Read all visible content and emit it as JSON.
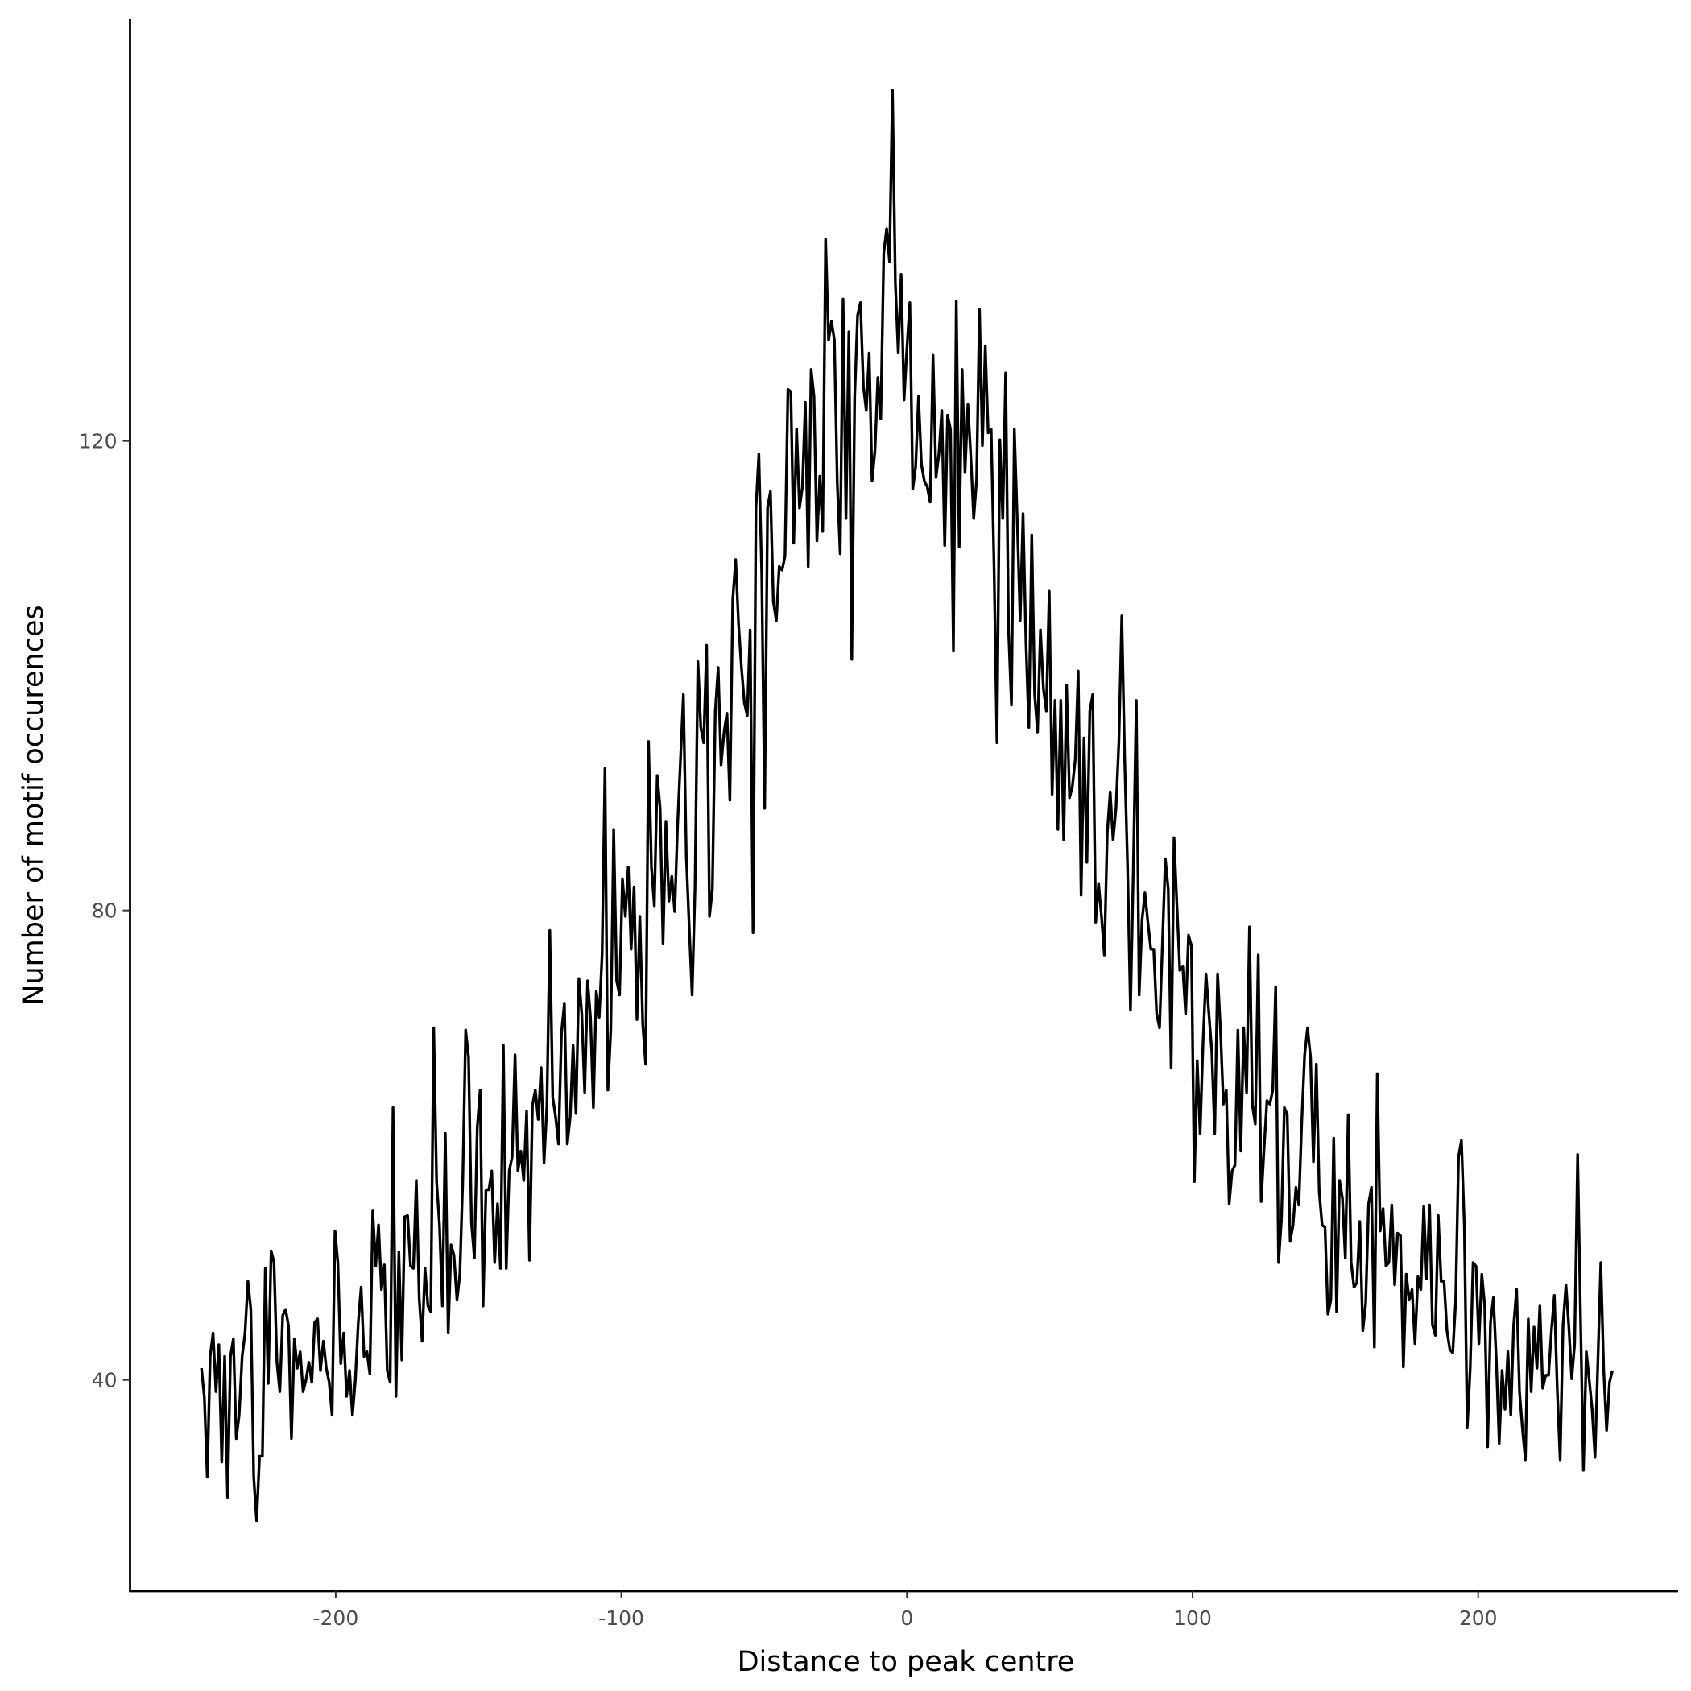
{
  "chart_data": {
    "type": "line",
    "title": "",
    "xlabel": "Distance to peak centre",
    "ylabel": "Number of motif occurences",
    "xlim": [
      -272,
      270
    ],
    "ylim": [
      22,
      156
    ],
    "x_range": [
      -247,
      247
    ],
    "x_ticks": [
      -200,
      -100,
      0,
      100,
      200
    ],
    "x_tick_labels": [
      "-200",
      "-100",
      "0",
      "100",
      "200"
    ],
    "y_ticks": [
      40,
      80,
      120
    ],
    "y_tick_labels": [
      "40",
      "80",
      "120"
    ],
    "grid": false,
    "line_color": "#000000",
    "series": [
      {
        "values": [
          41,
          38.5,
          31.7,
          42,
          44,
          39,
          43,
          33,
          42,
          30,
          42,
          43.5,
          35,
          37,
          42,
          44,
          48.4,
          46,
          31.7,
          28,
          33.5,
          33.5,
          49.5,
          39.7,
          51,
          50,
          41.5,
          39,
          45.5,
          46,
          44.6,
          35,
          43.5,
          41,
          42.4,
          39,
          40,
          41.5,
          39.8,
          44.9,
          45.2,
          40.8,
          43.3,
          41,
          39.8,
          37,
          52.7,
          50,
          41.4,
          44,
          38.6,
          40.8,
          37,
          40,
          44.9,
          47.9,
          42,
          42.4,
          40.5,
          54.4,
          49.7,
          53.2,
          47.7,
          49.8,
          40.8,
          39.8,
          63.2,
          38.6,
          50.9,
          41.7,
          53.9,
          54,
          49.7,
          49.5,
          57,
          46.9,
          43.3,
          49.5,
          46.3,
          45.8,
          70,
          56.9,
          53.2,
          46.3,
          61,
          44,
          51.5,
          50.6,
          46.8,
          49,
          57,
          69.8,
          67.5,
          53.4,
          50.4,
          61.5,
          64.7,
          46.3,
          56.2,
          56.2,
          57.8,
          50,
          55,
          49.5,
          68.5,
          49.5,
          57.8,
          59,
          67.7,
          57.8,
          59.5,
          57,
          62.9,
          50.2,
          63.4,
          64.7,
          62.2,
          66.6,
          58.5,
          63.4,
          78.3,
          64.1,
          62.4,
          60.1,
          69.6,
          72.1,
          60.1,
          62.4,
          68.5,
          62.7,
          74.2,
          71.2,
          64.5,
          74,
          70.9,
          63.2,
          73.1,
          70.9,
          76.2,
          92.1,
          64.7,
          69.8,
          86.9,
          74,
          72.8,
          82.7,
          79.5,
          83.7,
          76.7,
          82,
          70.7,
          79.5,
          70.3,
          66.9,
          94.4,
          83.7,
          80.4,
          91.5,
          88.7,
          77.2,
          87.6,
          80.8,
          82.9,
          79.9,
          87.3,
          92.9,
          98.4,
          84.6,
          78.6,
          72.8,
          81.8,
          101.2,
          95.6,
          94.3,
          102.6,
          79.5,
          81.8,
          97,
          100.7,
          92.4,
          95.2,
          96.8,
          89.4,
          106.5,
          109.9,
          104.4,
          100.7,
          97.7,
          96.6,
          103.9,
          78.1,
          114.3,
          118.9,
          108.6,
          88.7,
          114.3,
          115.7,
          106.3,
          104.7,
          109.3,
          109,
          110.2,
          124.4,
          124.2,
          111.3,
          121,
          114.3,
          116.1,
          123.3,
          109.3,
          126.1,
          123.8,
          111.5,
          117,
          112.3,
          137.2,
          128.6,
          130.2,
          128.6,
          116.4,
          110.4,
          132.1,
          113.4,
          129.3,
          101.4,
          123.8,
          130.7,
          131.8,
          124.7,
          122.6,
          127.5,
          116.6,
          119.2,
          125.4,
          121.9,
          136,
          138.1,
          135.3,
          149.9,
          133.5,
          127.5,
          134.2,
          123.5,
          127.9,
          131.8,
          115.9,
          117.8,
          123.8,
          118,
          116.6,
          116.1,
          114.8,
          127.3,
          116.9,
          118.9,
          122.6,
          111.1,
          122.2,
          121,
          102.1,
          131.9,
          111,
          126.1,
          117.3,
          123.1,
          118.7,
          113.4,
          116.7,
          131.2,
          119.6,
          128.1,
          120.7,
          121,
          109.3,
          94.3,
          120.1,
          113.4,
          125.8,
          103.9,
          97.5,
          121,
          113.2,
          104.7,
          113.8,
          102.9,
          95.6,
          112,
          98.4,
          95.2,
          103.9,
          98.9,
          97,
          107.2,
          89.9,
          97.9,
          86.9,
          97.9,
          86,
          99.2,
          89.6,
          90.6,
          92.9,
          100.4,
          81.3,
          94.7,
          84.1,
          97,
          98.4,
          79,
          82.3,
          79.5,
          76.2,
          86.6,
          90.1,
          86,
          88.7,
          94.4,
          105.1,
          92.9,
          83.7,
          71.5,
          83.7,
          97.9,
          72.8,
          79.2,
          81.5,
          79,
          76.7,
          76.7,
          71.2,
          70,
          77.2,
          84.4,
          81.8,
          66.6,
          86.2,
          80.4,
          74.9,
          75.2,
          71.2,
          77.9,
          77,
          56.9,
          67.2,
          61,
          68.9,
          74.6,
          71.2,
          68,
          61,
          74.6,
          69.8,
          63.5,
          64.7,
          55,
          57.8,
          58.3,
          69.8,
          59.5,
          70,
          64.5,
          78.6,
          63.4,
          61.8,
          76.2,
          55.2,
          59.7,
          63.8,
          63.5,
          64.7,
          73.5,
          50,
          53.7,
          63.2,
          62.6,
          51.8,
          53.2,
          56.4,
          54.9,
          62,
          67.7,
          70,
          67.5,
          58.6,
          66.9,
          56,
          53.2,
          53,
          45.6,
          46.8,
          60.6,
          45.8,
          57,
          55.5,
          50.4,
          62.6,
          50,
          47.9,
          48.3,
          53.5,
          44.2,
          46.5,
          55,
          56.4,
          42.8,
          66.1,
          52.7,
          54.6,
          49.7,
          50,
          54.9,
          48.1,
          52.5,
          52.3,
          41.1,
          49,
          46.8,
          47.7,
          43.1,
          48.8,
          47.7,
          54.8,
          48.6,
          54.9,
          44.7,
          43.8,
          54,
          48.4,
          48.4,
          44.2,
          42.6,
          42.3,
          46.6,
          59,
          60.4,
          53.2,
          35.9,
          41,
          50,
          49.7,
          43.1,
          49,
          46.3,
          34.3,
          44.9,
          47,
          41.7,
          34.6,
          40.8,
          37.5,
          42.4,
          37,
          44.7,
          47.7,
          39,
          35.9,
          33.2,
          45.2,
          39,
          44.5,
          41,
          46.3,
          39.3,
          40.4,
          40.4,
          44.2,
          47.2,
          39.2,
          33.2,
          44.7,
          48.1,
          44.5,
          40.1,
          43.1,
          59.2,
          45.4,
          32.3,
          42.4,
          40,
          37.5,
          33.4,
          41.7,
          50,
          40.8,
          35.7,
          39.8,
          40.8
        ]
      }
    ]
  }
}
